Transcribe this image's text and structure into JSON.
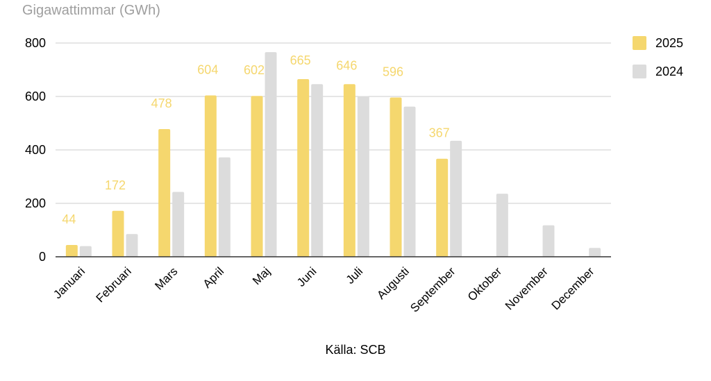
{
  "chart_data": {
    "type": "bar",
    "ylabel": "Gigawattimmar (GWh)",
    "source": "Källa: SCB",
    "categories": [
      "Januari",
      "Februari",
      "Mars",
      "April",
      "Maj",
      "Juni",
      "Juli",
      "Augusti",
      "September",
      "Oktober",
      "November",
      "December"
    ],
    "series": [
      {
        "name": "2025",
        "color": "#f5d76e",
        "values": [
          44,
          172,
          478,
          604,
          602,
          665,
          646,
          596,
          367,
          null,
          null,
          null
        ],
        "data_labels": [
          "44",
          "172",
          "478",
          "604",
          "602",
          "665",
          "646",
          "596",
          "367"
        ]
      },
      {
        "name": "2024",
        "color": "#dcdcdc",
        "values": [
          40,
          85,
          243,
          372,
          766,
          646,
          601,
          562,
          434,
          236,
          118,
          33
        ]
      }
    ],
    "ylim": [
      0,
      800
    ],
    "yticks": [
      0,
      200,
      400,
      600,
      800
    ],
    "grid": true,
    "legend_position": "right"
  }
}
